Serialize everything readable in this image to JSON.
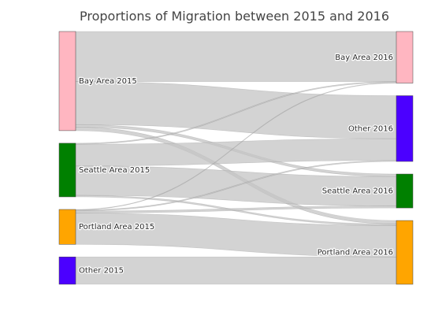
{
  "chart_data": {
    "type": "sankey",
    "title": "Proportions of Migration between 2015 and 2016",
    "nodes": [
      {
        "id": "bay15",
        "label": "Bay Area 2015",
        "color": "#FFB6C1",
        "column": 0
      },
      {
        "id": "sea15",
        "label": "Seattle Area 2015",
        "color": "#008000",
        "column": 0
      },
      {
        "id": "por15",
        "label": "Portland Area 2015",
        "color": "#FFA500",
        "column": 0
      },
      {
        "id": "oth15",
        "label": "Other 2015",
        "color": "#4B00FF",
        "column": 0
      },
      {
        "id": "bay16",
        "label": "Bay Area 2016",
        "color": "#FFB6C1",
        "column": 1
      },
      {
        "id": "oth16",
        "label": "Other 2016",
        "color": "#4B00FF",
        "column": 1
      },
      {
        "id": "sea16",
        "label": "Seattle Area 2016",
        "color": "#008000",
        "column": 1
      },
      {
        "id": "por16",
        "label": "Portland Area 2016",
        "color": "#FFA500",
        "column": 1
      }
    ],
    "links": [
      {
        "source": "bay15",
        "target": "bay16",
        "value": 49.5
      },
      {
        "source": "bay15",
        "target": "oth16",
        "value": 42.5
      },
      {
        "source": "bay15",
        "target": "sea16",
        "value": 2.5
      },
      {
        "source": "bay15",
        "target": "por16",
        "value": 3.5
      },
      {
        "source": "sea15",
        "target": "bay16",
        "value": 1
      },
      {
        "source": "sea15",
        "target": "oth16",
        "value": 21.5
      },
      {
        "source": "sea15",
        "target": "sea16",
        "value": 29
      },
      {
        "source": "sea15",
        "target": "por16",
        "value": 1.5
      },
      {
        "source": "por15",
        "target": "bay16",
        "value": 0.5
      },
      {
        "source": "por15",
        "target": "oth16",
        "value": 1
      },
      {
        "source": "por15",
        "target": "sea16",
        "value": 2
      },
      {
        "source": "por15",
        "target": "por16",
        "value": 31
      },
      {
        "source": "oth15",
        "target": "por16",
        "value": 27
      }
    ],
    "link_color": "#C4C4C4"
  }
}
